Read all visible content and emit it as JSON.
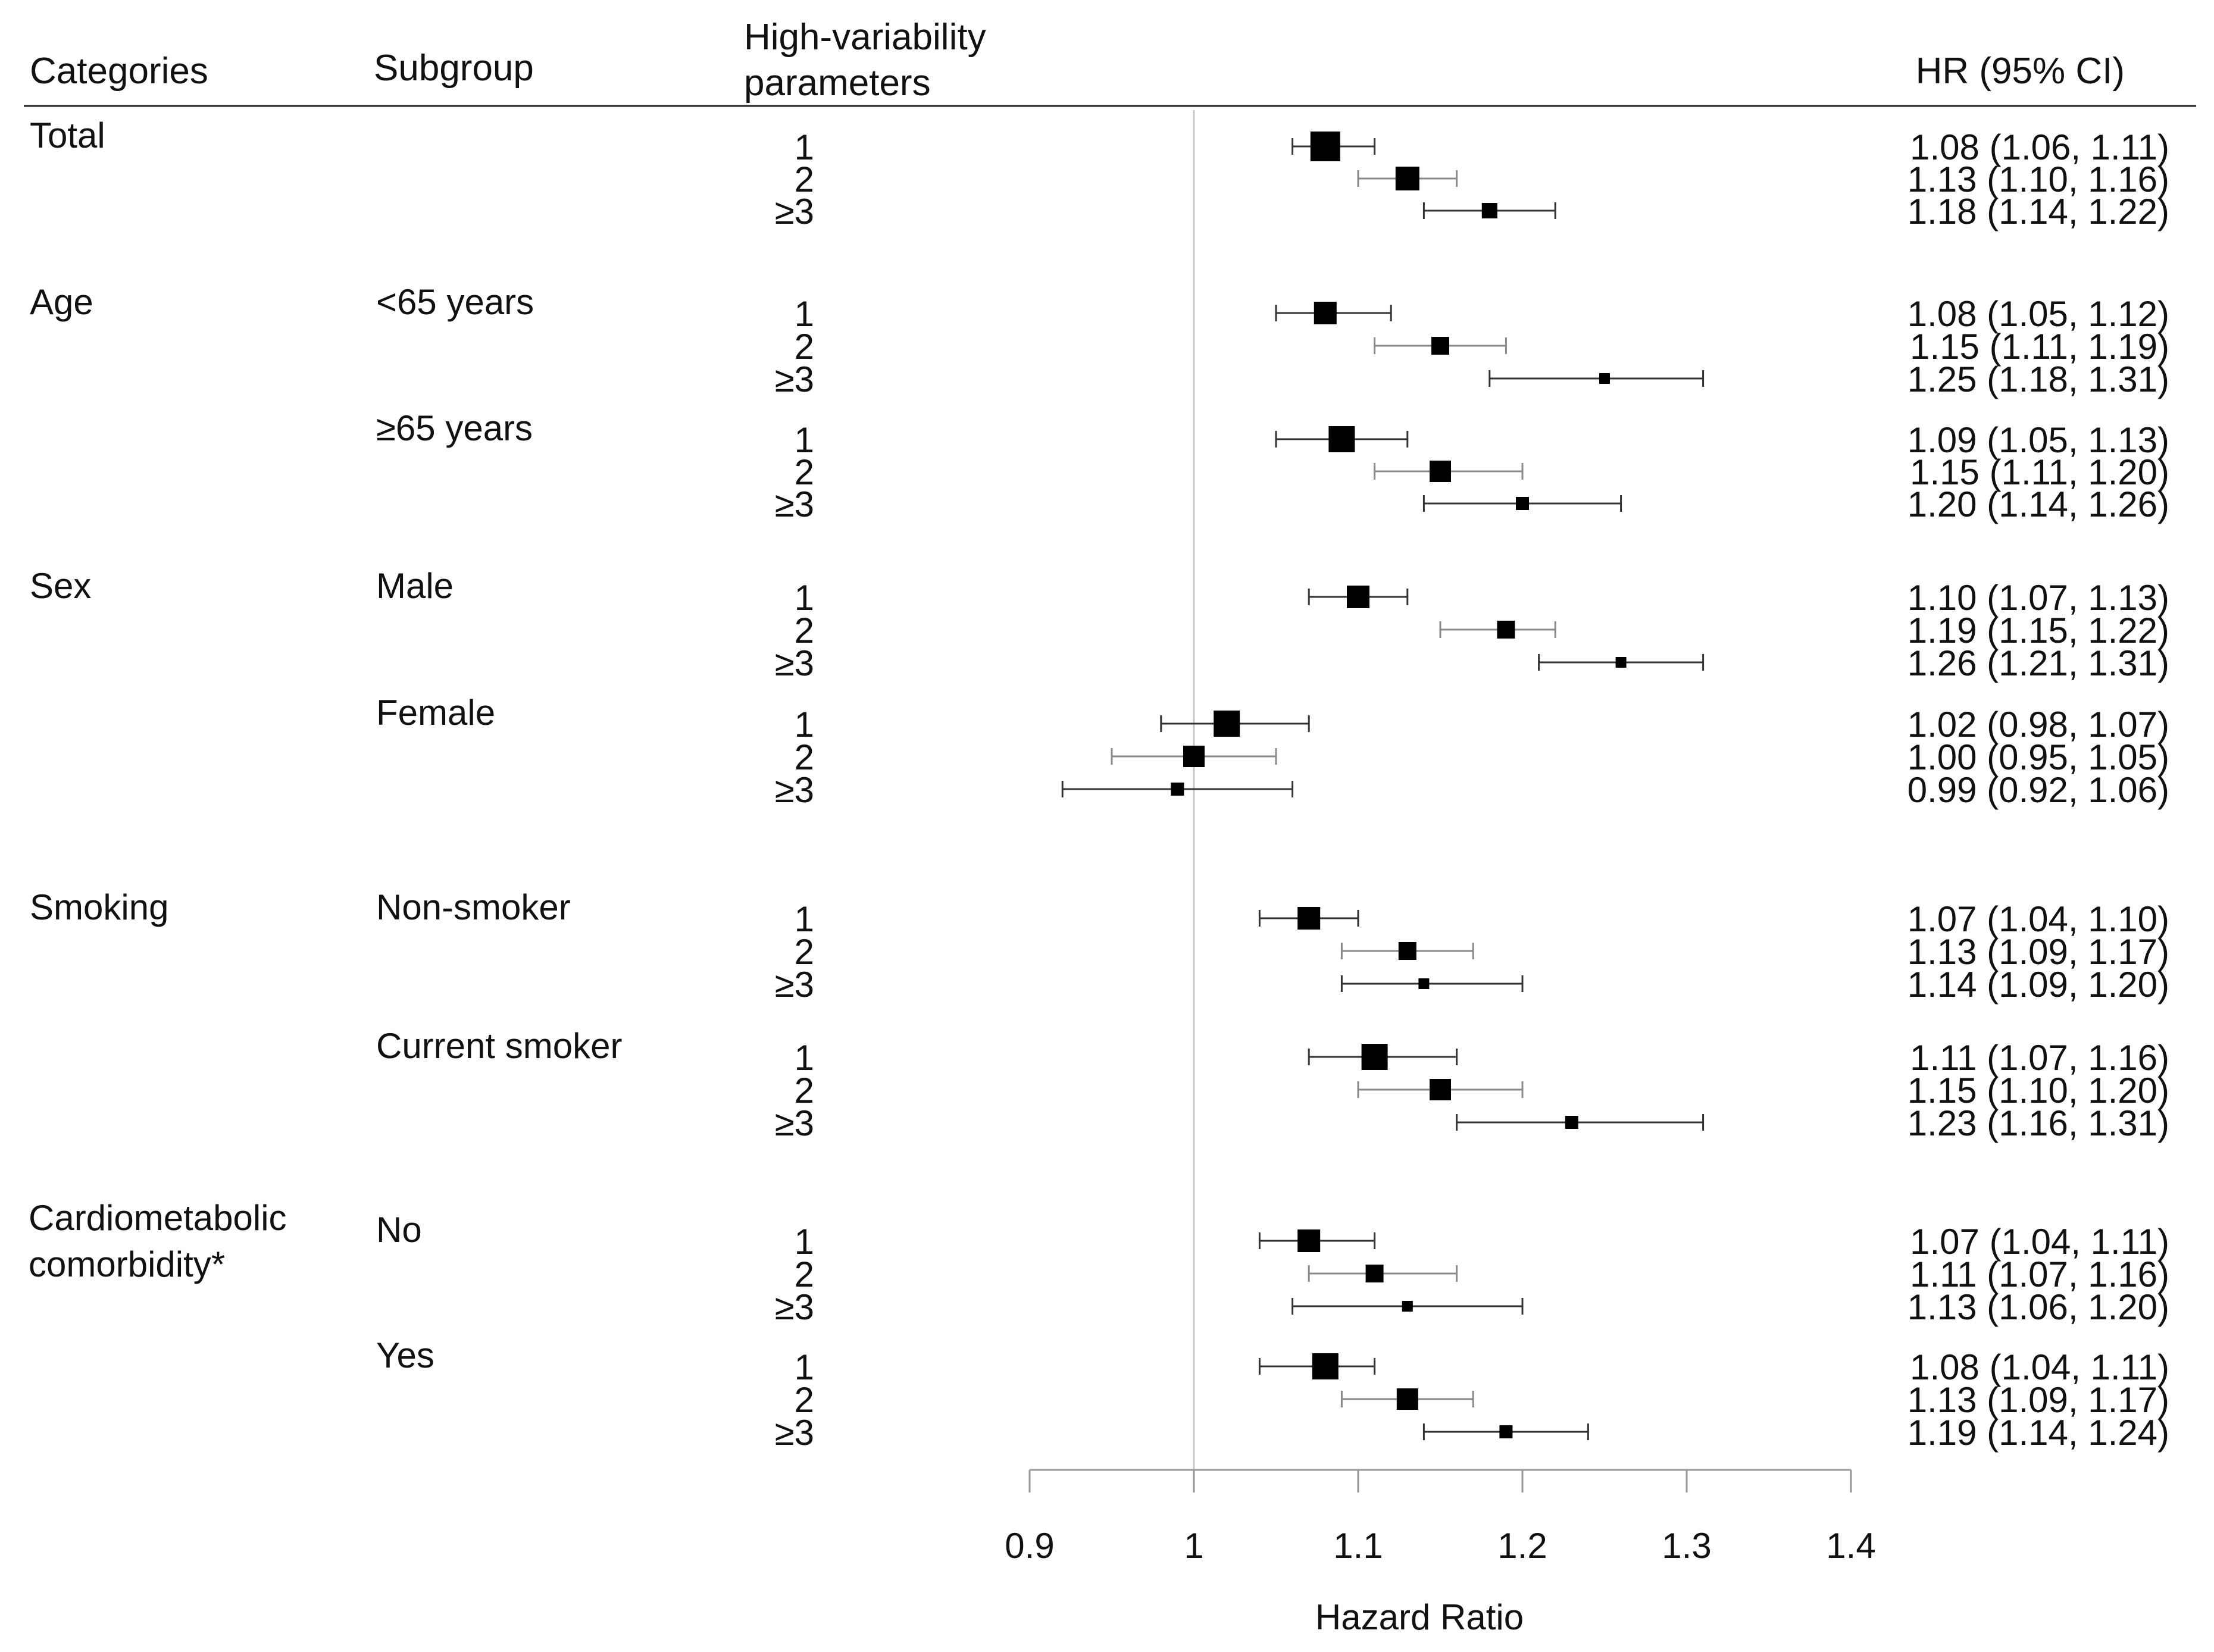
{
  "chart_data": {
    "type": "forest",
    "headers": {
      "categories": "Categories",
      "subgroup": "Subgroup",
      "params_line1": "High-variability",
      "params_line2": "parameters",
      "hr": "HR (95% CI)"
    },
    "xlabel": "Hazard Ratio",
    "xlim": [
      0.9,
      1.4
    ],
    "xticks": [
      0.9,
      1,
      1.1,
      1.2,
      1.3,
      1.4
    ],
    "xtick_labels": [
      "0.9",
      "1",
      "1.1",
      "1.2",
      "1.3",
      "1.4"
    ],
    "reference_line": 1,
    "rows": [
      {
        "category": "Total",
        "subgroup": "",
        "level": "1",
        "hr": 1.08,
        "lo": 1.06,
        "hi": 1.11,
        "label": "1.08 (1.06, 1.11)"
      },
      {
        "category": "",
        "subgroup": "",
        "level": "2",
        "hr": 1.13,
        "lo": 1.1,
        "hi": 1.16,
        "label": "1.13 (1.10, 1.16)"
      },
      {
        "category": "",
        "subgroup": "",
        "level": "≥3",
        "hr": 1.18,
        "lo": 1.14,
        "hi": 1.22,
        "label": "1.18 (1.14, 1.22)"
      },
      {
        "category": "Age",
        "subgroup": "<65 years",
        "level": "1",
        "hr": 1.08,
        "lo": 1.05,
        "hi": 1.12,
        "label": "1.08 (1.05, 1.12)"
      },
      {
        "category": "",
        "subgroup": "",
        "level": "2",
        "hr": 1.15,
        "lo": 1.11,
        "hi": 1.19,
        "label": "1.15 (1.11, 1.19)"
      },
      {
        "category": "",
        "subgroup": "",
        "level": "≥3",
        "hr": 1.25,
        "lo": 1.18,
        "hi": 1.31,
        "label": "1.25 (1.18, 1.31)"
      },
      {
        "category": "",
        "subgroup": "≥65 years",
        "level": "1",
        "hr": 1.09,
        "lo": 1.05,
        "hi": 1.13,
        "label": "1.09 (1.05, 1.13)"
      },
      {
        "category": "",
        "subgroup": "",
        "level": "2",
        "hr": 1.15,
        "lo": 1.11,
        "hi": 1.2,
        "label": "1.15 (1.11, 1.20)"
      },
      {
        "category": "",
        "subgroup": "",
        "level": "≥3",
        "hr": 1.2,
        "lo": 1.14,
        "hi": 1.26,
        "label": "1.20 (1.14, 1.26)"
      },
      {
        "category": "Sex",
        "subgroup": "Male",
        "level": "1",
        "hr": 1.1,
        "lo": 1.07,
        "hi": 1.13,
        "label": "1.10 (1.07, 1.13)"
      },
      {
        "category": "",
        "subgroup": "",
        "level": "2",
        "hr": 1.19,
        "lo": 1.15,
        "hi": 1.22,
        "label": "1.19 (1.15, 1.22)"
      },
      {
        "category": "",
        "subgroup": "",
        "level": "≥3",
        "hr": 1.26,
        "lo": 1.21,
        "hi": 1.31,
        "label": "1.26 (1.21, 1.31)"
      },
      {
        "category": "",
        "subgroup": "Female",
        "level": "1",
        "hr": 1.02,
        "lo": 0.98,
        "hi": 1.07,
        "label": "1.02 (0.98, 1.07)"
      },
      {
        "category": "",
        "subgroup": "",
        "level": "2",
        "hr": 1.0,
        "lo": 0.95,
        "hi": 1.05,
        "label": "1.00 (0.95, 1.05)"
      },
      {
        "category": "",
        "subgroup": "",
        "level": "≥3",
        "hr": 0.99,
        "lo": 0.92,
        "hi": 1.06,
        "label": "0.99 (0.92, 1.06)"
      },
      {
        "category": "Smoking",
        "subgroup": "Non-smoker",
        "level": "1",
        "hr": 1.07,
        "lo": 1.04,
        "hi": 1.1,
        "label": "1.07 (1.04, 1.10)"
      },
      {
        "category": "",
        "subgroup": "",
        "level": "2",
        "hr": 1.13,
        "lo": 1.09,
        "hi": 1.17,
        "label": "1.13 (1.09, 1.17)"
      },
      {
        "category": "",
        "subgroup": "",
        "level": "≥3",
        "hr": 1.14,
        "lo": 1.09,
        "hi": 1.2,
        "label": "1.14 (1.09, 1.20)"
      },
      {
        "category": "",
        "subgroup": "Current smoker",
        "level": "1",
        "hr": 1.11,
        "lo": 1.07,
        "hi": 1.16,
        "label": "1.11 (1.07, 1.16)"
      },
      {
        "category": "",
        "subgroup": "",
        "level": "2",
        "hr": 1.15,
        "lo": 1.1,
        "hi": 1.2,
        "label": "1.15 (1.10, 1.20)"
      },
      {
        "category": "",
        "subgroup": "",
        "level": "≥3",
        "hr": 1.23,
        "lo": 1.16,
        "hi": 1.31,
        "label": "1.23 (1.16, 1.31)"
      },
      {
        "category": "Cardiometabolic|comorbidity*",
        "subgroup": "No",
        "level": "1",
        "hr": 1.07,
        "lo": 1.04,
        "hi": 1.11,
        "label": "1.07 (1.04, 1.11)"
      },
      {
        "category": "",
        "subgroup": "",
        "level": "2",
        "hr": 1.11,
        "lo": 1.07,
        "hi": 1.16,
        "label": "1.11 (1.07, 1.16)"
      },
      {
        "category": "",
        "subgroup": "",
        "level": "≥3",
        "hr": 1.13,
        "lo": 1.06,
        "hi": 1.2,
        "label": "1.13 (1.06, 1.20)"
      },
      {
        "category": "",
        "subgroup": "Yes",
        "level": "1",
        "hr": 1.08,
        "lo": 1.04,
        "hi": 1.11,
        "label": "1.08 (1.04, 1.11)"
      },
      {
        "category": "",
        "subgroup": "",
        "level": "2",
        "hr": 1.13,
        "lo": 1.09,
        "hi": 1.17,
        "label": "1.13 (1.09, 1.17)"
      },
      {
        "category": "",
        "subgroup": "",
        "level": "≥3",
        "hr": 1.19,
        "lo": 1.14,
        "hi": 1.24,
        "label": "1.19 (1.14, 1.24)"
      }
    ]
  }
}
